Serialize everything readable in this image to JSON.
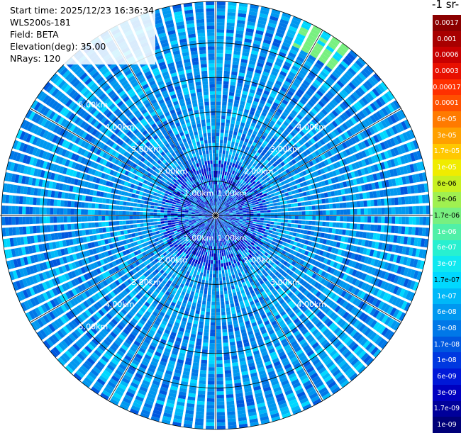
{
  "info": {
    "start_time": "Start time: 2025/12/23 16:36:34",
    "instrument": "WLS200s-181",
    "field": "Field: BETA",
    "elevation": "Elevation(deg): 35.00",
    "nrays": "NRays: 120"
  },
  "legend": {
    "unit_title": "-1 sr-",
    "entries": [
      {
        "label": "0.0017",
        "color": "#8b0000",
        "text_color": "#ffffff"
      },
      {
        "label": "0.001",
        "color": "#a80000",
        "text_color": "#ffffff"
      },
      {
        "label": "0.0006",
        "color": "#c80000",
        "text_color": "#ffffff"
      },
      {
        "label": "0.0003",
        "color": "#e81000",
        "text_color": "#ffffff"
      },
      {
        "label": "0.00017",
        "color": "#ff3000",
        "text_color": "#ffffff"
      },
      {
        "label": "0.0001",
        "color": "#ff5000",
        "text_color": "#ffffff"
      },
      {
        "label": "6e-05",
        "color": "#ff7a00",
        "text_color": "#ffffff"
      },
      {
        "label": "3e-05",
        "color": "#ffa000",
        "text_color": "#ffffff"
      },
      {
        "label": "1.7e-05",
        "color": "#ffc800",
        "text_color": "#ffffff"
      },
      {
        "label": "1e-05",
        "color": "#f0ec00",
        "text_color": "#ffffff"
      },
      {
        "label": "6e-06",
        "color": "#c8f020",
        "text_color": "#000000"
      },
      {
        "label": "3e-06",
        "color": "#a0f050",
        "text_color": "#000000"
      },
      {
        "label": "1.7e-06",
        "color": "#78f080",
        "text_color": "#000000"
      },
      {
        "label": "1e-06",
        "color": "#50f0a8",
        "text_color": "#ffffff"
      },
      {
        "label": "6e-07",
        "color": "#28f0d0",
        "text_color": "#ffffff"
      },
      {
        "label": "3e-07",
        "color": "#10e8f0",
        "text_color": "#ffffff"
      },
      {
        "label": "1.7e-07",
        "color": "#00d8ff",
        "text_color": "#000000"
      },
      {
        "label": "1e-07",
        "color": "#00b8f8",
        "text_color": "#ffffff"
      },
      {
        "label": "6e-08",
        "color": "#0098f0",
        "text_color": "#ffffff"
      },
      {
        "label": "3e-08",
        "color": "#0078e8",
        "text_color": "#ffffff"
      },
      {
        "label": "1.7e-08",
        "color": "#0058e0",
        "text_color": "#ffffff"
      },
      {
        "label": "1e-08",
        "color": "#0038e0",
        "text_color": "#ffffff"
      },
      {
        "label": "6e-09",
        "color": "#0018d8",
        "text_color": "#ffffff"
      },
      {
        "label": "3e-09",
        "color": "#0000c0",
        "text_color": "#ffffff"
      },
      {
        "label": "1.7e-09",
        "color": "#00009a",
        "text_color": "#ffffff"
      },
      {
        "label": "1e-09",
        "color": "#000078",
        "text_color": "#ffffff"
      }
    ]
  },
  "chart_data": {
    "type": "heatmap",
    "projection": "polar PPI scan",
    "field": "BETA",
    "elevation_deg": 35.0,
    "n_rays": 120,
    "range_rings_km": [
      1.0,
      2.0,
      3.0,
      4.0,
      5.0
    ],
    "ring_labels": [
      "1.00km",
      "2.00km",
      "3.00km",
      "4.00km",
      "5.00km"
    ],
    "max_range_km": 6.2,
    "azimuth_grid_step_deg": 30,
    "color_scale": "log",
    "color_range": [
      1e-09,
      0.0017
    ],
    "dominant_value": 6e-08,
    "notes_region": {
      "azimuth_deg_range": [
        25,
        40
      ],
      "range_km_range": [
        5.4,
        6.2
      ],
      "value": 1.7e-06
    }
  }
}
